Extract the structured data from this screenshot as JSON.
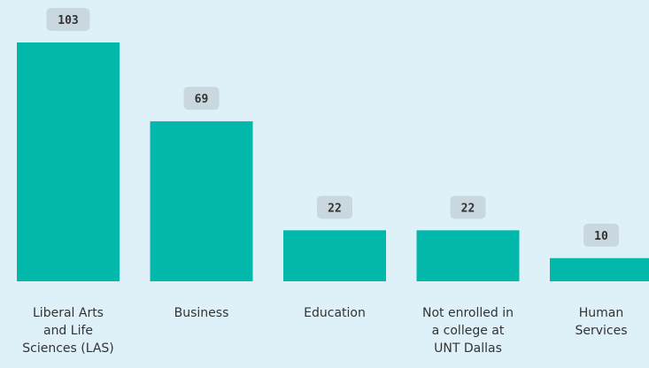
{
  "chart_data": {
    "type": "bar",
    "categories": [
      "Liberal Arts and Life Sciences (LAS)",
      "Business",
      "Education",
      "Not enrolled in a college at UNT Dallas",
      "Human Services"
    ],
    "category_lines": [
      [
        "Liberal Arts",
        "and Life",
        "Sciences (LAS)"
      ],
      [
        "Business"
      ],
      [
        "Education"
      ],
      [
        "Not enrolled in",
        "a college at",
        "UNT Dallas"
      ],
      [
        "Human",
        "Services"
      ]
    ],
    "values": [
      103,
      69,
      22,
      22,
      10
    ],
    "data_labels": [
      "103",
      "69",
      "22",
      "22",
      "10"
    ],
    "ylim": [
      0,
      103
    ],
    "grid": false,
    "legend": "none",
    "colors": {
      "bar": "#01b8aa",
      "label_bg": "#c9d8de",
      "label_text": "#333333",
      "background": "#dff1f8"
    }
  }
}
